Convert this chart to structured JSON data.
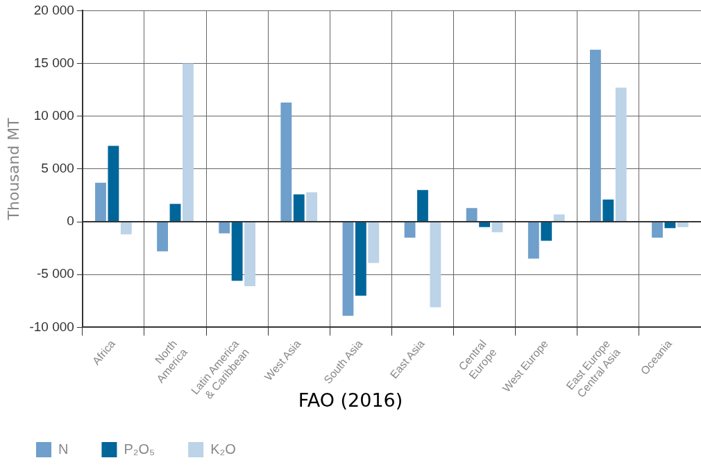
{
  "chart_data": {
    "type": "bar",
    "ylabel": "Thousand MT",
    "categories": [
      "Africa",
      "North America",
      "Latin America & Caribbean",
      "West Asia",
      "South Asia",
      "East Asia",
      "Central Europe",
      "West Europe",
      "East Europe Central Asia",
      "Oceania"
    ],
    "series": [
      {
        "name": "N",
        "color": "#6f9fcb",
        "values": [
          3700,
          -2800,
          -1100,
          11300,
          -8900,
          -1500,
          1300,
          -3500,
          16300,
          -1500
        ]
      },
      {
        "name": "P₂O₅",
        "color": "#00669a",
        "values": [
          7200,
          1700,
          -5600,
          2600,
          -7000,
          3000,
          -500,
          -1800,
          2100,
          -600
        ]
      },
      {
        "name": "K₂O",
        "color": "#bcd3e8",
        "values": [
          -1200,
          15000,
          -6100,
          2800,
          -3900,
          -8100,
          -1000,
          700,
          12700,
          -500
        ]
      }
    ],
    "ylim": [
      -10000,
      20000
    ],
    "yticks": [
      {
        "value": -10000,
        "label": "-10 000"
      },
      {
        "value": -5000,
        "label": "-5 000"
      },
      0,
      {
        "value": 5000,
        "label": "5 000"
      },
      {
        "value": 10000,
        "label": "10 000"
      },
      {
        "value": 15000,
        "label": "15 000"
      },
      {
        "value": 20000,
        "label": "20 000"
      }
    ],
    "grid": true,
    "legend": "bottom left",
    "annotations": [
      "FAO (2016)"
    ]
  }
}
